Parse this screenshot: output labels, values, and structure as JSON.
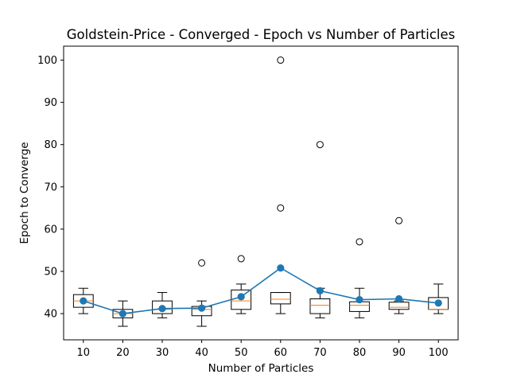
{
  "chart_data": {
    "type": "box",
    "title": "Goldstein-Price - Converged - Epoch vs Number of Particles",
    "xlabel": "Number of Particles",
    "ylabel": "Epoch to Converge",
    "categories": [
      10,
      20,
      30,
      40,
      50,
      60,
      70,
      80,
      90,
      100
    ],
    "ylim": [
      33.8,
      103.3
    ],
    "yticks": [
      40,
      50,
      60,
      70,
      80,
      90,
      100
    ],
    "grid": false,
    "boxes": [
      {
        "x": 10,
        "whisker_low": 40,
        "q1": 41.5,
        "median": 43,
        "q3": 44.5,
        "whisker_high": 46,
        "outliers": []
      },
      {
        "x": 20,
        "whisker_low": 37,
        "q1": 39,
        "median": 40,
        "q3": 41,
        "whisker_high": 43,
        "outliers": []
      },
      {
        "x": 30,
        "whisker_low": 39,
        "q1": 40,
        "median": 41,
        "q3": 43,
        "whisker_high": 45,
        "outliers": []
      },
      {
        "x": 40,
        "whisker_low": 37,
        "q1": 39.5,
        "median": 41,
        "q3": 41.7,
        "whisker_high": 43,
        "outliers": [
          52
        ]
      },
      {
        "x": 50,
        "whisker_low": 40,
        "q1": 41,
        "median": 43,
        "q3": 45.6,
        "whisker_high": 47,
        "outliers": [
          53
        ]
      },
      {
        "x": 60,
        "whisker_low": 40,
        "q1": 42.3,
        "median": 43.4,
        "q3": 45,
        "whisker_high": 45,
        "outliers": [
          65,
          100
        ]
      },
      {
        "x": 70,
        "whisker_low": 39,
        "q1": 40,
        "median": 42,
        "q3": 43.5,
        "whisker_high": 46,
        "outliers": [
          80
        ]
      },
      {
        "x": 80,
        "whisker_low": 39,
        "q1": 40.5,
        "median": 42,
        "q3": 42.8,
        "whisker_high": 46,
        "outliers": [
          57
        ]
      },
      {
        "x": 90,
        "whisker_low": 40,
        "q1": 41,
        "median": 41.5,
        "q3": 42.7,
        "whisker_high": 43,
        "outliers": [
          62
        ]
      },
      {
        "x": 100,
        "whisker_low": 40,
        "q1": 41,
        "median": 41,
        "q3": 43.8,
        "whisker_high": 47,
        "outliers": []
      }
    ],
    "mean_line": {
      "values": [
        43,
        40,
        41.2,
        41.3,
        44,
        50.8,
        45.4,
        43.3,
        43.5,
        42.5
      ],
      "color": "#1f77b4"
    },
    "box_color": "#000000",
    "median_color": "#ff7f0e",
    "outlier_marker": "open-circle"
  }
}
